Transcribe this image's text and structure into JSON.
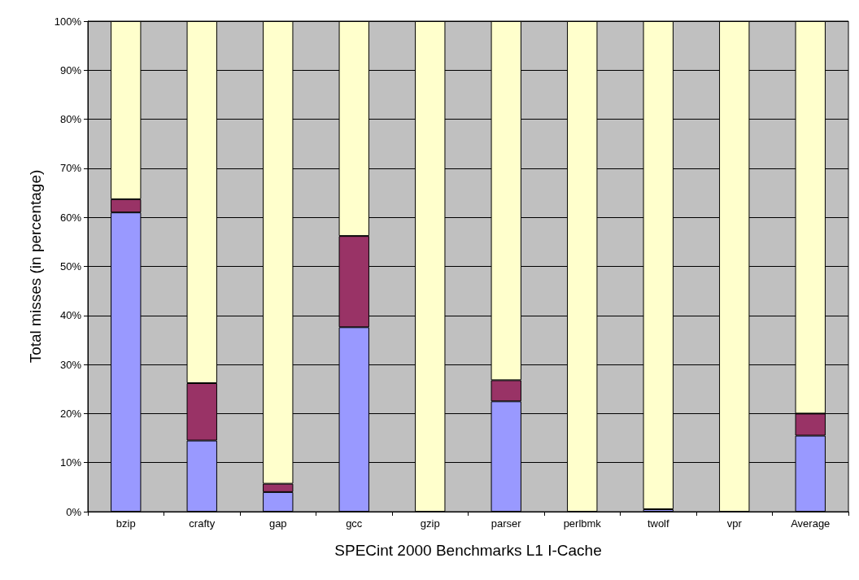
{
  "chart_data": {
    "type": "bar",
    "stacked": true,
    "xlabel": "SPECint 2000 Benchmarks L1 I-Cache",
    "ylabel": "Total misses (in percentage)",
    "categories": [
      "bzip",
      "crafty",
      "gap",
      "gcc",
      "gzip",
      "parser",
      "perlbmk",
      "twolf",
      "vpr",
      "Average"
    ],
    "series": [
      {
        "color": "#9999ff",
        "values": [
          61,
          14.5,
          4,
          37.6,
          0,
          22.5,
          0,
          0.5,
          0,
          15.5
        ]
      },
      {
        "color": "#993366",
        "values": [
          2.7,
          11.7,
          1.7,
          18.6,
          0,
          4.3,
          0,
          0,
          0,
          4.5
        ]
      },
      {
        "color": "#ffffcc",
        "values": [
          36.3,
          73.8,
          94.3,
          43.8,
          100,
          73.2,
          100,
          99.5,
          100,
          80
        ]
      }
    ],
    "ylim": [
      0,
      100
    ],
    "yticks": [
      {
        "value": 0,
        "label": "0%"
      },
      {
        "value": 10,
        "label": "10%"
      },
      {
        "value": 20,
        "label": "20%"
      },
      {
        "value": 30,
        "label": "30%"
      },
      {
        "value": 40,
        "label": "40%"
      },
      {
        "value": 50,
        "label": "50%"
      },
      {
        "value": 60,
        "label": "60%"
      },
      {
        "value": 70,
        "label": "70%"
      },
      {
        "value": 80,
        "label": "80%"
      },
      {
        "value": 90,
        "label": "90%"
      },
      {
        "value": 100,
        "label": "100%"
      }
    ],
    "grid": "y"
  }
}
